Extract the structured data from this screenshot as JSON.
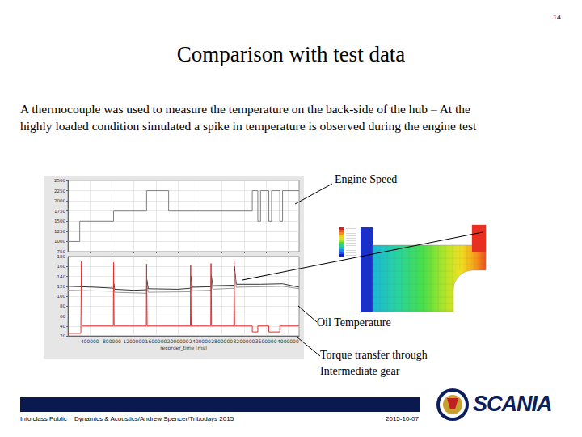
{
  "page_number": 14,
  "title": "Comparison with test data",
  "body": [
    "A thermocouple was used to measure the temperature on the back-side of the hub – At the",
    "highly loaded condition simulated a spike in temperature is observed during the engine test"
  ],
  "chart_data": {
    "type": "line",
    "xlabel": "recorder_time [ms]",
    "xlim": [
      0,
      4200000
    ],
    "xticks": [
      400000,
      800000,
      1200000,
      1600000,
      2000000,
      2400000,
      2800000,
      3200000,
      3600000,
      4000000
    ],
    "ylim": [
      750,
      2500
    ],
    "yticks": [
      750,
      1000,
      1250,
      1500,
      1750,
      2000,
      2250,
      2500
    ],
    "y2lim": [
      20,
      180
    ],
    "y2ticks": [
      20,
      40,
      60,
      80,
      100,
      120,
      140,
      160,
      180
    ],
    "grid": true,
    "annotations": [
      "Engine Speed",
      "Oil Temperature",
      "Torque transfer through Intermediate gear"
    ],
    "series": [
      {
        "color": "#808080",
        "x": [
          0,
          215000,
          215000,
          830000,
          830000,
          1430000,
          1430000,
          1830000,
          1830000,
          3350000,
          3350000,
          3450000,
          3450000,
          3500000,
          3500000,
          3650000,
          3650000,
          3700000,
          3700000,
          3850000,
          3850000,
          3900000,
          3900000,
          4200000
        ],
        "values": [
          1000,
          1000,
          1500,
          1500,
          1750,
          1750,
          2250,
          2250,
          1750,
          1750,
          2250,
          2250,
          1500,
          1500,
          2250,
          2250,
          1500,
          1500,
          2250,
          2250,
          1500,
          1500,
          2250,
          2250
        ]
      },
      {
        "color": "#333333",
        "axis": "y2",
        "x": [
          0,
          500000,
          830000,
          835000,
          850000,
          1200000,
          1430000,
          1435000,
          1460000,
          2000000,
          2230000,
          2235000,
          2260000,
          2600000,
          2605000,
          2630000,
          3020000,
          3025000,
          3060000,
          3500000,
          3900000,
          4200000
        ],
        "values": [
          120,
          118,
          116,
          125,
          114,
          112,
          113,
          133,
          115,
          114,
          116,
          140,
          118,
          119,
          142,
          121,
          122,
          160,
          124,
          124,
          125,
          118
        ]
      },
      {
        "color": "#9a9a9a",
        "axis": "y2",
        "x": [
          0,
          830000,
          835000,
          850000,
          1430000,
          1435000,
          1460000,
          2230000,
          2235000,
          2260000,
          2600000,
          2605000,
          2630000,
          3020000,
          3025000,
          3060000,
          3900000,
          4200000
        ],
        "values": [
          112,
          110,
          118,
          108,
          106,
          124,
          108,
          109,
          130,
          111,
          112,
          133,
          114,
          116,
          150,
          118,
          120,
          115
        ]
      },
      {
        "color": "#e03030",
        "axis": "y2",
        "x": [
          0,
          236000,
          236000,
          241000,
          246000,
          256000,
          825000,
          830000,
          840000,
          1425000,
          1430000,
          1440000,
          2225000,
          2230000,
          2240000,
          2595000,
          2600000,
          2610000,
          3015000,
          3020000,
          3030000,
          3350000,
          3350000,
          3450000,
          3450000,
          3650000,
          3650000,
          3850000,
          3850000,
          4200000
        ],
        "values": [
          25,
          25,
          40,
          40,
          170,
          40,
          40,
          168,
          40,
          40,
          165,
          40,
          40,
          162,
          40,
          40,
          166,
          40,
          40,
          172,
          40,
          40,
          28,
          28,
          40,
          40,
          28,
          28,
          40,
          40
        ]
      }
    ]
  },
  "footer": {
    "classification": "Info class Public",
    "author": "Dynamics & Acoustics/Andrew Spencer/Tribodays 2015",
    "date": "2015-10-07",
    "logo": "SCANIA"
  }
}
